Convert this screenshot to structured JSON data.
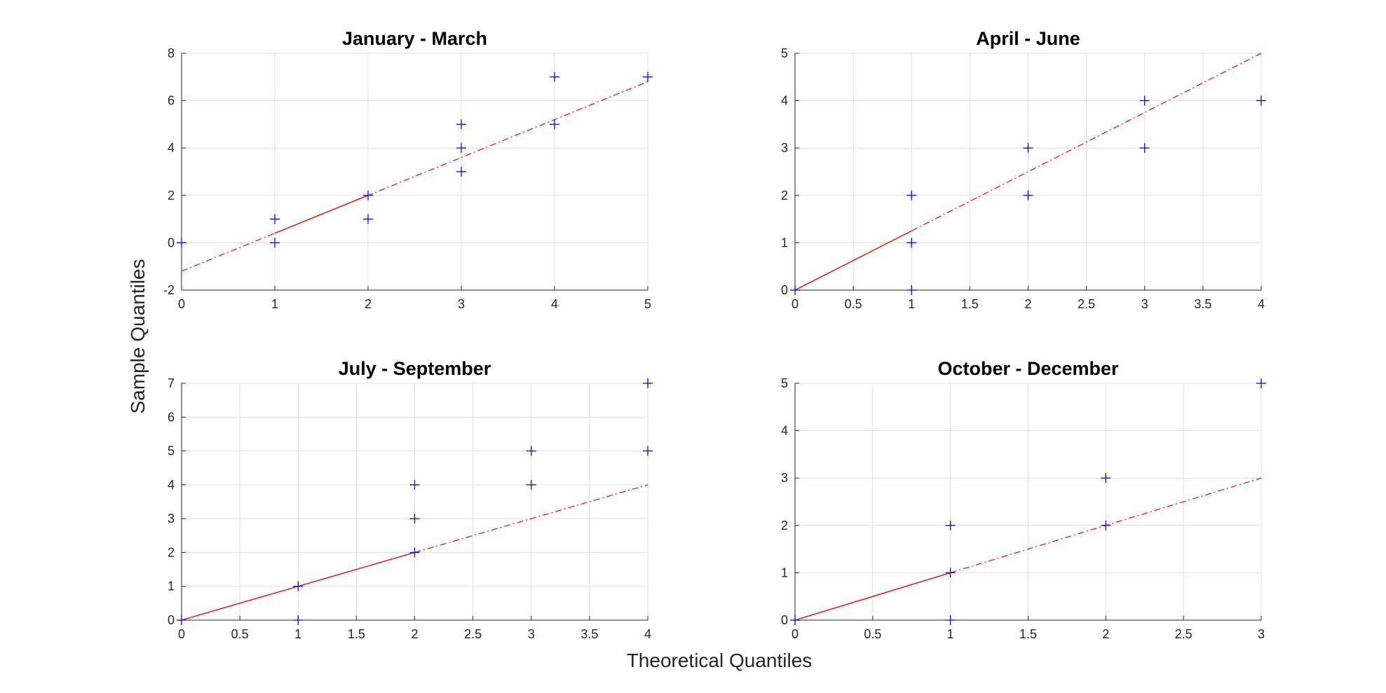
{
  "figure": {
    "xlabel": "Theoretical Quantiles",
    "ylabel": "Sample Quantiles"
  },
  "colors": {
    "points": "#0000ff",
    "ref_line": "#ff0000",
    "grid": "#dfdfdf",
    "axis": "#262626"
  },
  "chart_data": [
    {
      "type": "scatter",
      "title": "January - March",
      "xlim": [
        0,
        5
      ],
      "ylim": [
        -2,
        8
      ],
      "xticks": [
        0,
        1,
        2,
        3,
        4,
        5
      ],
      "yticks": [
        -2,
        0,
        2,
        4,
        6,
        8
      ],
      "grid": true,
      "points": [
        [
          0,
          0
        ],
        [
          1,
          0
        ],
        [
          1,
          1
        ],
        [
          2,
          1
        ],
        [
          2,
          2
        ],
        [
          3,
          3
        ],
        [
          3,
          4
        ],
        [
          3,
          5
        ],
        [
          4,
          5
        ],
        [
          4,
          7
        ],
        [
          5,
          7
        ]
      ],
      "ref_line": {
        "solid": [
          [
            1,
            0.4
          ],
          [
            2,
            2
          ]
        ],
        "dashed": [
          [
            0,
            -1.2
          ],
          [
            5,
            6.8
          ]
        ]
      }
    },
    {
      "type": "scatter",
      "title": "April - June",
      "xlim": [
        0,
        4
      ],
      "ylim": [
        0,
        5
      ],
      "xticks": [
        0,
        0.5,
        1,
        1.5,
        2,
        2.5,
        3,
        3.5,
        4
      ],
      "yticks": [
        0,
        1,
        2,
        3,
        4,
        5
      ],
      "grid": true,
      "points": [
        [
          0,
          0
        ],
        [
          1,
          0
        ],
        [
          1,
          1
        ],
        [
          1,
          2
        ],
        [
          2,
          2
        ],
        [
          2,
          3
        ],
        [
          3,
          3
        ],
        [
          3,
          4
        ],
        [
          4,
          4
        ]
      ],
      "ref_line": {
        "solid": [
          [
            0,
            0
          ],
          [
            1,
            1.25
          ]
        ],
        "dashed": [
          [
            1,
            1.25
          ],
          [
            4,
            5
          ]
        ]
      }
    },
    {
      "type": "scatter",
      "title": "July - September",
      "xlim": [
        0,
        4
      ],
      "ylim": [
        0,
        7
      ],
      "xticks": [
        0,
        0.5,
        1,
        1.5,
        2,
        2.5,
        3,
        3.5,
        4
      ],
      "yticks": [
        0,
        1,
        2,
        3,
        4,
        5,
        6,
        7
      ],
      "grid": true,
      "points": [
        [
          0,
          0
        ],
        [
          1,
          0
        ],
        [
          1,
          1
        ],
        [
          2,
          2
        ],
        [
          2,
          3
        ],
        [
          2,
          4
        ],
        [
          3,
          4
        ],
        [
          3,
          5
        ],
        [
          4,
          5
        ],
        [
          4,
          7
        ]
      ],
      "ref_line": {
        "solid": [
          [
            0,
            0
          ],
          [
            2,
            2
          ]
        ],
        "dashed": [
          [
            2,
            2
          ],
          [
            4,
            4
          ]
        ]
      }
    },
    {
      "type": "scatter",
      "title": "October - December",
      "xlim": [
        0,
        3
      ],
      "ylim": [
        0,
        5
      ],
      "xticks": [
        0,
        0.5,
        1,
        1.5,
        2,
        2.5,
        3
      ],
      "yticks": [
        0,
        1,
        2,
        3,
        4,
        5
      ],
      "grid": true,
      "points": [
        [
          0,
          0
        ],
        [
          1,
          0
        ],
        [
          1,
          1
        ],
        [
          1,
          2
        ],
        [
          2,
          2
        ],
        [
          2,
          3
        ],
        [
          3,
          5
        ]
      ],
      "ref_line": {
        "solid": [
          [
            0,
            0
          ],
          [
            1,
            1
          ]
        ],
        "dashed": [
          [
            1,
            1
          ],
          [
            3,
            3
          ]
        ]
      }
    }
  ]
}
